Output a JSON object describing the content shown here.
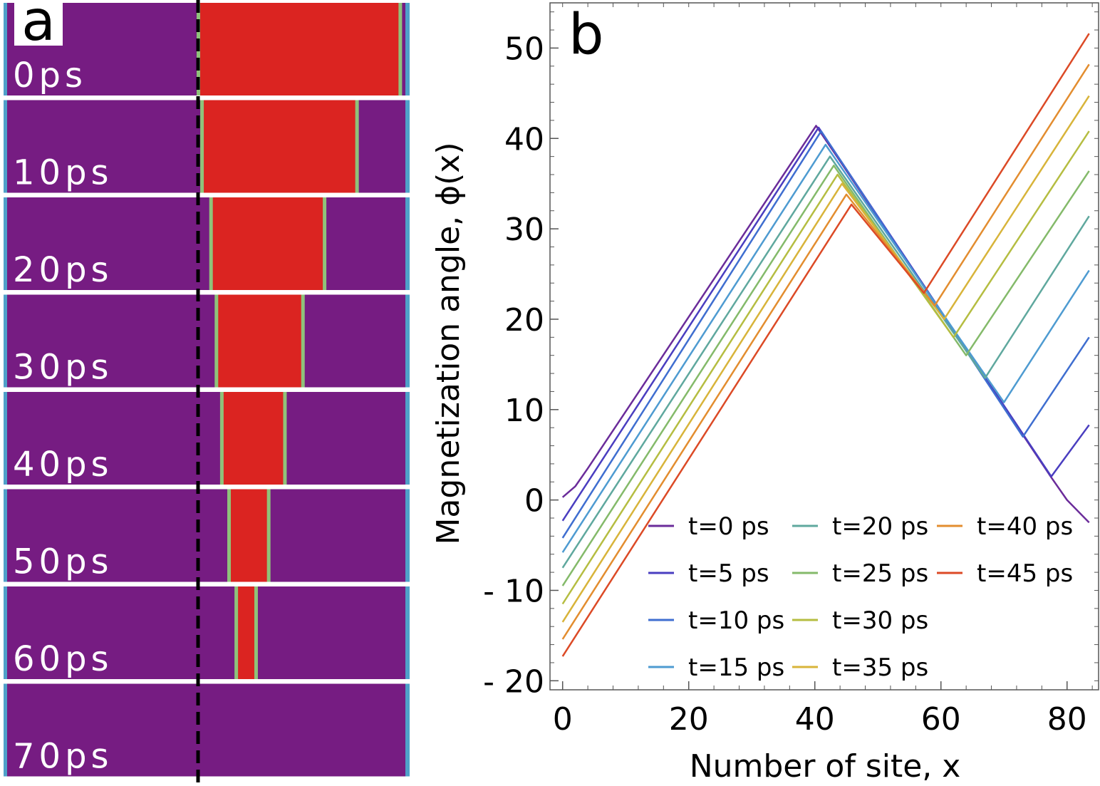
{
  "panel_a": {
    "label": "a",
    "strips": [
      {
        "time": "0ps",
        "red_start": 0.0,
        "red_end": 56.0
      },
      {
        "time": "10ps",
        "red_start": 1.0,
        "red_end": 44.0
      },
      {
        "time": "20ps",
        "red_start": 3.5,
        "red_end": 35.0
      },
      {
        "time": "30ps",
        "red_start": 5.0,
        "red_end": 29.0
      },
      {
        "time": "40ps",
        "red_start": 6.5,
        "red_end": 24.0
      },
      {
        "time": "50ps",
        "red_start": 8.5,
        "red_end": 19.5
      },
      {
        "time": "60ps",
        "red_start": 10.5,
        "red_end": 16.0
      },
      {
        "time": "70ps",
        "red_start": null,
        "red_end": null
      }
    ],
    "colors": {
      "background": "#761c82",
      "domain": "#db2421",
      "edge": "#4fa0c9",
      "dash": "#000000"
    }
  },
  "chart_data": {
    "type": "line",
    "panel_label": "b",
    "xlabel": "Number of site, x",
    "ylabel": "Magnetization angle, ϕ(x)",
    "xlim": [
      -2,
      85
    ],
    "ylim": [
      -21,
      55
    ],
    "xticks": [
      0,
      20,
      40,
      60,
      80
    ],
    "yticks": [
      -20,
      -10,
      0,
      10,
      20,
      30,
      40,
      50
    ],
    "ytick_labels": [
      "- 20",
      "- 10",
      "0",
      "10",
      "20",
      "30",
      "40",
      "50"
    ],
    "legend_position": "bottom-right",
    "legend_columns": 3,
    "series": [
      {
        "name": "t=0 ps",
        "color": "#6b2c9a",
        "x": [
          0,
          2,
          4,
          40.2,
          44,
          77.5,
          80,
          83.5
        ],
        "y": [
          0.3,
          1.5,
          3.5,
          41.4,
          37.5,
          2.5,
          0,
          -2.5
        ]
      },
      {
        "name": "t=5 ps",
        "color": "#4a3ec0",
        "x": [
          0,
          40.6,
          77.5,
          83.5
        ],
        "y": [
          -2.3,
          41.2,
          2.6,
          8.3
        ]
      },
      {
        "name": "t=10 ps",
        "color": "#3f6ed0",
        "x": [
          0,
          41.0,
          73.0,
          83.5
        ],
        "y": [
          -4.2,
          40.8,
          7.0,
          18.0
        ]
      },
      {
        "name": "t=15 ps",
        "color": "#4e9bd1",
        "x": [
          0,
          41.7,
          70.0,
          83.5
        ],
        "y": [
          -5.8,
          39.3,
          10.8,
          25.4
        ]
      },
      {
        "name": "t=20 ps",
        "color": "#5fa89e",
        "x": [
          0,
          42.4,
          67.0,
          83.5
        ],
        "y": [
          -7.5,
          38.0,
          13.5,
          31.4
        ]
      },
      {
        "name": "t=25 ps",
        "color": "#84ba6a",
        "x": [
          0,
          43.0,
          64.0,
          83.5
        ],
        "y": [
          -9.5,
          37.0,
          16.0,
          36.4
        ]
      },
      {
        "name": "t=30 ps",
        "color": "#b5bd41",
        "x": [
          0,
          43.6,
          62.0,
          83.5
        ],
        "y": [
          -11.5,
          36.0,
          18.0,
          40.8
        ]
      },
      {
        "name": "t=35 ps",
        "color": "#d8b43a",
        "x": [
          0,
          44.3,
          60.5,
          83.5
        ],
        "y": [
          -13.5,
          35.0,
          20.0,
          44.7
        ]
      },
      {
        "name": "t=40 ps",
        "color": "#e38d2f",
        "x": [
          0,
          45.0,
          59.0,
          83.5
        ],
        "y": [
          -15.4,
          33.8,
          21.5,
          48.2
        ]
      },
      {
        "name": "t=45 ps",
        "color": "#dc4a26",
        "x": [
          0,
          45.8,
          57.3,
          83.5
        ],
        "y": [
          -17.3,
          32.7,
          22.9,
          51.6
        ]
      }
    ]
  }
}
